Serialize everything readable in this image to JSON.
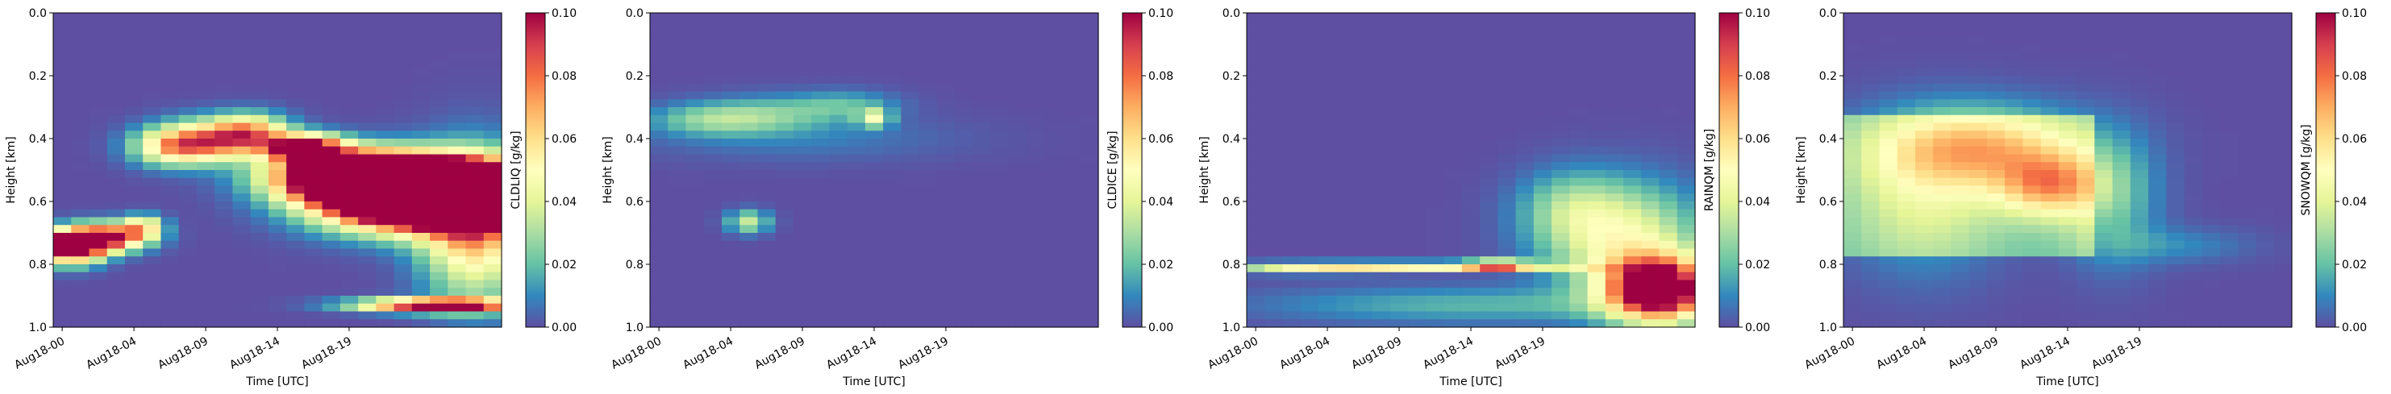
{
  "colorscale": {
    "name": "Spectral_r",
    "stops": [
      "#5e4fa2",
      "#3288bd",
      "#66c2a5",
      "#abdda4",
      "#e6f598",
      "#ffffbf",
      "#fee08b",
      "#fdae61",
      "#f46d43",
      "#d53e4f",
      "#9e0142"
    ]
  },
  "chart_data": [
    {
      "type": "heatmap",
      "xlabel": "Time [UTC]",
      "ylabel": "Height [km]",
      "colorbar_label": "CLDLIQ [g/kg]",
      "x_tick_labels": [
        "Aug18-00",
        "Aug18-04",
        "Aug18-09",
        "Aug18-14",
        "Aug18-19"
      ],
      "y_tick_labels": [
        "0.0",
        "0.2",
        "0.4",
        "0.6",
        "0.8",
        "1.0"
      ],
      "colorbar_tick_labels": [
        "0.00",
        "0.02",
        "0.04",
        "0.06",
        "0.08",
        "0.10"
      ],
      "ylim": [
        1.0,
        0.0
      ],
      "clim": [
        0.0,
        0.1
      ],
      "n_times": 25,
      "hours_per_step": 1,
      "blobs": [
        {
          "t": 0.5,
          "z": 0.745,
          "st": 1.2,
          "sz": 0.035,
          "a": 0.13
        },
        {
          "t": 2.5,
          "z": 0.715,
          "st": 1.5,
          "sz": 0.03,
          "a": 0.1
        },
        {
          "t": 4.5,
          "z": 0.68,
          "st": 0.8,
          "sz": 0.025,
          "a": 0.05
        },
        {
          "t": 6.0,
          "z": 0.43,
          "st": 1.5,
          "sz": 0.04,
          "a": 0.04
        },
        {
          "t": 8.0,
          "z": 0.41,
          "st": 2.0,
          "sz": 0.045,
          "a": 0.07
        },
        {
          "t": 10.5,
          "z": 0.38,
          "st": 1.5,
          "sz": 0.04,
          "a": 0.06
        },
        {
          "t": 13.5,
          "z": 0.43,
          "st": 1.5,
          "sz": 0.03,
          "a": 0.11
        },
        {
          "t": 16.5,
          "z": 0.52,
          "st": 3.0,
          "sz": 0.05,
          "a": 0.16
        },
        {
          "t": 19.5,
          "z": 0.58,
          "st": 3.5,
          "sz": 0.07,
          "a": 0.22
        },
        {
          "t": 22.5,
          "z": 0.57,
          "st": 3.0,
          "sz": 0.05,
          "a": 0.2
        },
        {
          "t": 23.0,
          "z": 0.68,
          "st": 2.0,
          "sz": 0.15,
          "a": 0.07
        },
        {
          "t": 21.0,
          "z": 0.93,
          "st": 3.0,
          "sz": 0.015,
          "a": 0.12
        }
      ]
    },
    {
      "type": "heatmap",
      "xlabel": "Time [UTC]",
      "ylabel": "Height [km]",
      "colorbar_label": "CLDICE [g/kg]",
      "x_tick_labels": [
        "Aug18-00",
        "Aug18-04",
        "Aug18-09",
        "Aug18-14",
        "Aug18-19"
      ],
      "y_tick_labels": [
        "0.0",
        "0.2",
        "0.4",
        "0.6",
        "0.8",
        "1.0"
      ],
      "colorbar_tick_labels": [
        "0.00",
        "0.02",
        "0.04",
        "0.06",
        "0.08",
        "0.10"
      ],
      "ylim": [
        1.0,
        0.0
      ],
      "clim": [
        0.0,
        0.1
      ],
      "n_times": 25,
      "hours_per_step": 1,
      "blobs": [
        {
          "t": 3.0,
          "z": 0.34,
          "st": 2.5,
          "sz": 0.035,
          "a": 0.022
        },
        {
          "t": 6.5,
          "z": 0.32,
          "st": 3.0,
          "sz": 0.04,
          "a": 0.018
        },
        {
          "t": 10.5,
          "z": 0.29,
          "st": 2.0,
          "sz": 0.03,
          "a": 0.015
        },
        {
          "t": 12.0,
          "z": 0.335,
          "st": 0.6,
          "sz": 0.02,
          "a": 0.04
        },
        {
          "t": 5.0,
          "z": 0.665,
          "st": 0.8,
          "sz": 0.025,
          "a": 0.035
        },
        {
          "t": 8.0,
          "z": 0.4,
          "st": 6.0,
          "sz": 0.05,
          "a": 0.008
        }
      ]
    },
    {
      "type": "heatmap",
      "xlabel": "Time [UTC]",
      "ylabel": "Height [km]",
      "colorbar_label": "RAINQM [g/kg]",
      "x_tick_labels": [
        "Aug18-00",
        "Aug18-04",
        "Aug18-09",
        "Aug18-14",
        "Aug18-19"
      ],
      "y_tick_labels": [
        "0.0",
        "0.2",
        "0.4",
        "0.6",
        "0.8",
        "1.0"
      ],
      "colorbar_tick_labels": [
        "0.00",
        "0.02",
        "0.04",
        "0.06",
        "0.08",
        "0.10"
      ],
      "ylim": [
        1.0,
        0.0
      ],
      "clim": [
        0.0,
        0.1
      ],
      "n_times": 25,
      "hours_per_step": 1,
      "blobs": [
        {
          "t": 9.0,
          "z": 0.807,
          "st": 6.0,
          "sz": 0.01,
          "a": 0.055
        },
        {
          "t": 3.0,
          "z": 0.815,
          "st": 3.0,
          "sz": 0.012,
          "a": 0.025
        },
        {
          "t": 13.5,
          "z": 0.803,
          "st": 1.2,
          "sz": 0.01,
          "a": 0.08
        },
        {
          "t": 22.5,
          "z": 0.88,
          "st": 2.0,
          "sz": 0.07,
          "a": 0.12
        },
        {
          "t": 20.5,
          "z": 0.72,
          "st": 3.0,
          "sz": 0.12,
          "a": 0.045
        },
        {
          "t": 17.5,
          "z": 0.62,
          "st": 2.0,
          "sz": 0.08,
          "a": 0.02
        },
        {
          "t": 12.0,
          "z": 0.93,
          "st": 8.0,
          "sz": 0.04,
          "a": 0.018
        }
      ]
    },
    {
      "type": "heatmap",
      "xlabel": "Time [UTC]",
      "ylabel": "Height [km]",
      "colorbar_label": "SNOWQM [g/kg]",
      "x_tick_labels": [
        "Aug18-00",
        "Aug18-04",
        "Aug18-09",
        "Aug18-14",
        "Aug18-19"
      ],
      "y_tick_labels": [
        "0.0",
        "0.2",
        "0.4",
        "0.6",
        "0.8",
        "1.0"
      ],
      "colorbar_tick_labels": [
        "0.00",
        "0.02",
        "0.04",
        "0.06",
        "0.08",
        "0.10"
      ],
      "ylim": [
        1.0,
        0.0
      ],
      "clim": [
        0.0,
        0.1
      ],
      "n_times": 25,
      "hours_per_step": 1,
      "base": {
        "t0": 0,
        "t1": 13,
        "z0": 0.32,
        "z1": 0.78,
        "v": 0.02
      },
      "blobs": [
        {
          "t": 7.0,
          "z": 0.43,
          "st": 4.0,
          "sz": 0.09,
          "a": 0.045
        },
        {
          "t": 11.0,
          "z": 0.55,
          "st": 2.0,
          "sz": 0.07,
          "a": 0.045
        },
        {
          "t": 4.0,
          "z": 0.6,
          "st": 3.0,
          "sz": 0.16,
          "a": 0.02
        },
        {
          "t": 14.5,
          "z": 0.6,
          "st": 1.8,
          "sz": 0.14,
          "a": 0.02
        },
        {
          "t": 18.0,
          "z": 0.74,
          "st": 3.0,
          "sz": 0.04,
          "a": 0.01
        }
      ]
    }
  ]
}
